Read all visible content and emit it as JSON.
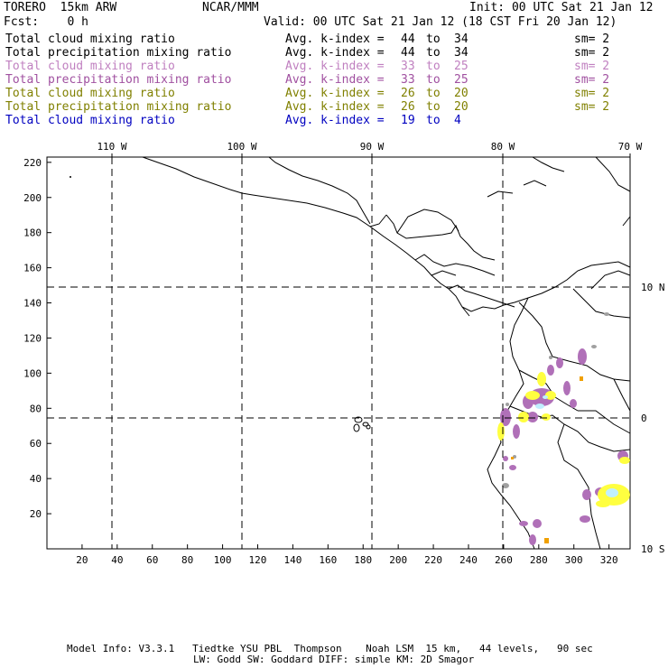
{
  "header": {
    "model": "TORERO  15km ARW",
    "center": "NCAR/MMM",
    "init": "Init: 00 UTC Sat 21 Jan 12",
    "fcst": "Fcst:    0 h",
    "valid": "Valid: 00 UTC Sat 21 Jan 12 (18 CST Fri 20 Jan 12)"
  },
  "legend": [
    {
      "field": "Total cloud mixing ratio",
      "index_label": "Avg. k-index =",
      "from": "44",
      "to_word": "to",
      "to": "34",
      "sm": "sm= 2",
      "color": "#000000"
    },
    {
      "field": "Total precipitation mixing ratio",
      "index_label": "Avg. k-index =",
      "from": "44",
      "to_word": "to",
      "to": "34",
      "sm": "sm= 2",
      "color": "#000000"
    },
    {
      "field": "Total cloud mixing ratio",
      "index_label": "Avg. k-index =",
      "from": "33",
      "to_word": "to",
      "to": "25",
      "sm": "sm= 2",
      "color": "#c080c0"
    },
    {
      "field": "Total precipitation mixing ratio",
      "index_label": "Avg. k-index =",
      "from": "33",
      "to_word": "to",
      "to": "25",
      "sm": "sm= 2",
      "color": "#a050a0"
    },
    {
      "field": "Total cloud mixing ratio",
      "index_label": "Avg. k-index =",
      "from": "26",
      "to_word": "to",
      "to": "20",
      "sm": "sm= 2",
      "color": "#808000"
    },
    {
      "field": "Total precipitation mixing ratio",
      "index_label": "Avg. k-index =",
      "from": "26",
      "to_word": "to",
      "to": "20",
      "sm": "sm= 2",
      "color": "#808000"
    },
    {
      "field": "Total cloud mixing ratio",
      "index_label": "Avg. k-index =",
      "from": "19",
      "to_word": "to",
      "to": "4",
      "sm": "",
      "color": "#0000c0"
    }
  ],
  "axes": {
    "lon_labels": [
      "110 W",
      "100 W",
      "90 W",
      "80 W",
      "70 W"
    ],
    "lat_labels": [
      "10 N",
      "0",
      "10 S"
    ],
    "x_ticks": [
      "20",
      "40",
      "60",
      "80",
      "100",
      "120",
      "140",
      "160",
      "180",
      "200",
      "220",
      "240",
      "260",
      "280",
      "300",
      "320"
    ],
    "y_ticks": [
      "220",
      "200",
      "180",
      "160",
      "140",
      "120",
      "100",
      "80",
      "60",
      "40",
      "20"
    ]
  },
  "footer": {
    "line1": "Model Info: V3.3.1   Tiedtke YSU PBL  Thompson    Noah LSM  15 km,   44 levels,   90 sec",
    "line2": "LW: Godd SW: Goddard DIFF: simple KM: 2D Smagor"
  },
  "colors": {
    "land_outline": "#000000",
    "cloud_purple": "#b070b8",
    "precip_yellow": "#ffff40",
    "light_cyan": "#c0f0ff",
    "gray": "#a0a0a0",
    "orange": "#f0a000"
  }
}
